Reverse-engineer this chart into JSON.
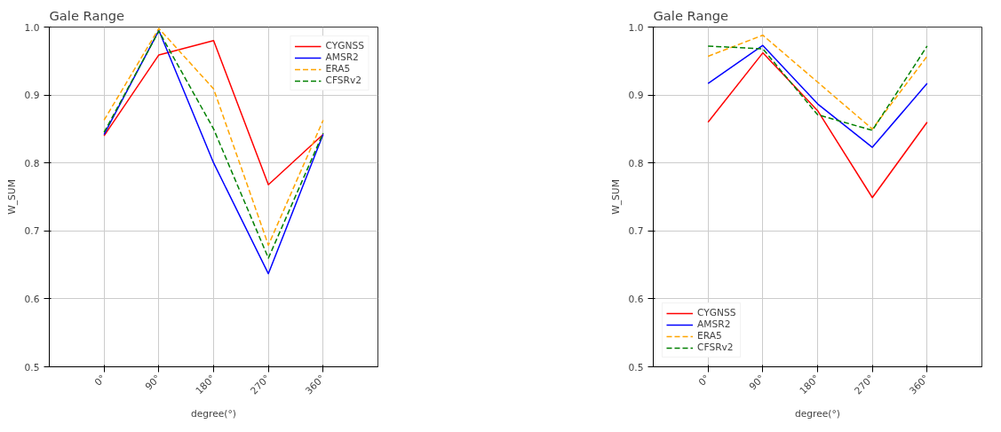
{
  "chart_data": [
    {
      "type": "line",
      "title": "Gale Range",
      "xlabel": "degree(°)",
      "ylabel": "W_SUM",
      "categories": [
        "0°",
        "90°",
        "180°",
        "270°",
        "360°"
      ],
      "ylim": [
        0.5,
        1.0
      ],
      "yticks": [
        {
          "value": 0.5,
          "label": "0.5"
        },
        {
          "value": 0.6,
          "label": "0.6"
        },
        {
          "value": 0.7,
          "label": "0.7"
        },
        {
          "value": 0.8,
          "label": "0.8"
        },
        {
          "value": 0.9,
          "label": "0.9"
        },
        {
          "value": 1.0,
          "label": "1.0"
        }
      ],
      "grid": true,
      "legend": "top right",
      "series": [
        {
          "name": "CYGNSS",
          "color": "#ff0000",
          "line_style": "solid",
          "values": [
            0.84,
            0.959,
            0.98,
            0.768,
            0.842
          ]
        },
        {
          "name": "AMSR2",
          "color": "#0000ff",
          "line_style": "solid",
          "values": [
            0.842,
            0.995,
            0.8,
            0.637,
            0.842
          ]
        },
        {
          "name": "ERA5",
          "color": "#ffa500",
          "line_style": "dashed",
          "values": [
            0.863,
            0.998,
            0.909,
            0.679,
            0.863
          ]
        },
        {
          "name": "CFSRv2",
          "color": "#008000",
          "line_style": "dashed",
          "values": [
            0.845,
            0.994,
            0.85,
            0.66,
            0.844
          ]
        }
      ]
    },
    {
      "type": "line",
      "title": "Gale Range",
      "xlabel": "degree(°)",
      "ylabel": "W_SUM",
      "categories": [
        "0°",
        "90°",
        "180°",
        "270°",
        "360°"
      ],
      "ylim": [
        0.5,
        1.0
      ],
      "yticks": [
        {
          "value": 0.5,
          "label": "0.5"
        },
        {
          "value": 0.6,
          "label": "0.6"
        },
        {
          "value": 0.7,
          "label": "0.7"
        },
        {
          "value": 0.8,
          "label": "0.8"
        },
        {
          "value": 0.9,
          "label": "0.9"
        },
        {
          "value": 1.0,
          "label": "1.0"
        }
      ],
      "grid": true,
      "legend": "bottom left",
      "series": [
        {
          "name": "CYGNSS",
          "color": "#ff0000",
          "line_style": "solid",
          "values": [
            0.86,
            0.962,
            0.877,
            0.749,
            0.86
          ]
        },
        {
          "name": "AMSR2",
          "color": "#0000ff",
          "line_style": "solid",
          "values": [
            0.917,
            0.973,
            0.887,
            0.823,
            0.917
          ]
        },
        {
          "name": "ERA5",
          "color": "#ffa500",
          "line_style": "dashed",
          "values": [
            0.957,
            0.988,
            0.919,
            0.85,
            0.957
          ]
        },
        {
          "name": "CFSRv2",
          "color": "#008000",
          "line_style": "dashed",
          "values": [
            0.972,
            0.968,
            0.871,
            0.848,
            0.972
          ]
        }
      ]
    }
  ]
}
